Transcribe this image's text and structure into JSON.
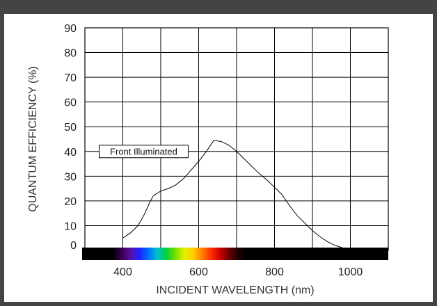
{
  "chart_data": {
    "type": "line",
    "xlabel": "INCIDENT WAVELENGTH (nm)",
    "ylabel": "QUANTUM EFFICIENCY (%)",
    "xlim": [
      300,
      1100
    ],
    "ylim": [
      0,
      90
    ],
    "x_ticks": [
      400,
      600,
      800,
      1000
    ],
    "y_ticks": [
      0,
      10,
      20,
      30,
      40,
      50,
      60,
      70,
      80,
      90
    ],
    "grid": true,
    "series": [
      {
        "points": [
          [
            400,
            5
          ],
          [
            420,
            7
          ],
          [
            440,
            10
          ],
          [
            455,
            14
          ],
          [
            470,
            19
          ],
          [
            480,
            22
          ],
          [
            500,
            24
          ],
          [
            520,
            25
          ],
          [
            540,
            26.5
          ],
          [
            560,
            29
          ],
          [
            580,
            32.5
          ],
          [
            600,
            36
          ],
          [
            620,
            40
          ],
          [
            640,
            44.5
          ],
          [
            660,
            44
          ],
          [
            680,
            42.5
          ],
          [
            700,
            40
          ],
          [
            720,
            37
          ],
          [
            740,
            34
          ],
          [
            760,
            31
          ],
          [
            780,
            28.5
          ],
          [
            800,
            25.5
          ],
          [
            820,
            22.5
          ],
          [
            840,
            18
          ],
          [
            860,
            14
          ],
          [
            880,
            11
          ],
          [
            900,
            8
          ],
          [
            920,
            5.5
          ],
          [
            940,
            3.5
          ],
          [
            960,
            2
          ],
          [
            980,
            1
          ],
          [
            1000,
            0
          ]
        ]
      }
    ],
    "annotations": [
      {
        "text": "Front Illuminated",
        "x": 455,
        "y": 40
      }
    ],
    "spectrum_band": {
      "colors": [
        "#000000",
        "#000000",
        "#3a0050",
        "#5a10a0",
        "#2020ff",
        "#0070ff",
        "#00c0d0",
        "#00d040",
        "#70e000",
        "#e0f000",
        "#ffd000",
        "#ff8000",
        "#ff3000",
        "#d00000",
        "#700000",
        "#200000",
        "#000000",
        "#000000"
      ]
    }
  }
}
